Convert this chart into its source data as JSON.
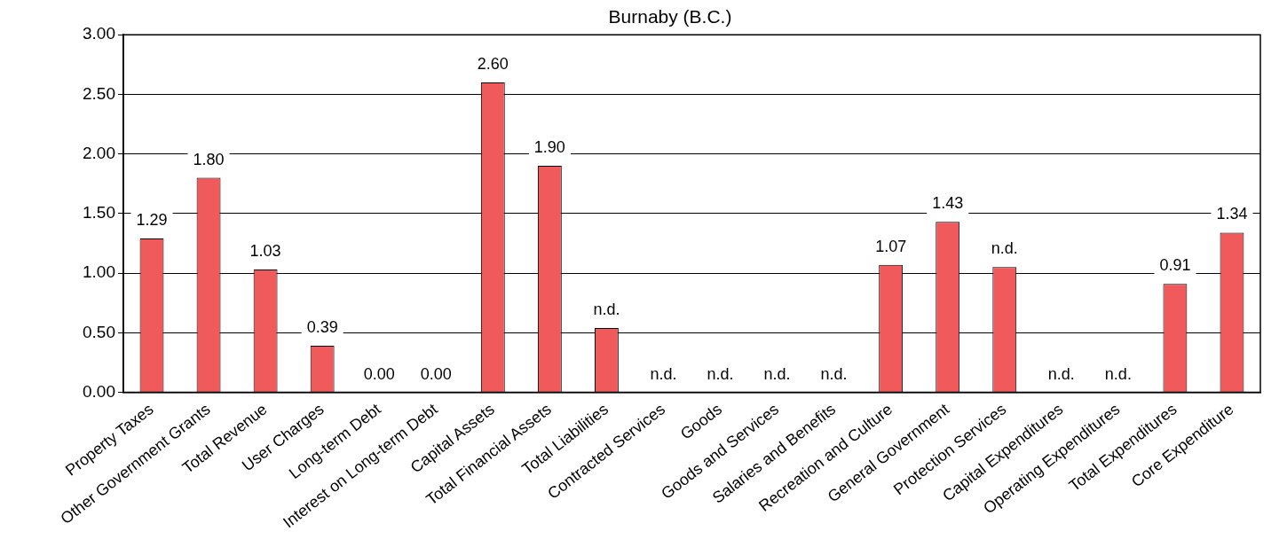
{
  "chart_data": {
    "type": "bar",
    "title": "Burnaby (B.C.)",
    "categories": [
      "Property Taxes",
      "Other Government Grants",
      "Total Revenue",
      "User Charges",
      "Long-term Debt",
      "Interest on Long-term Debt",
      "Capital Assets",
      "Total Financial Assets",
      "Total Liabilities",
      "Contracted Services",
      "Goods",
      "Goods and Services",
      "Salaries and Benefits",
      "Recreation and Culture",
      "General Government",
      "Protection Services",
      "Capital Expenditures",
      "Operating Expenditures",
      "Total Expenditures",
      "Core Expenditure"
    ],
    "values": [
      1.29,
      1.8,
      1.03,
      0.39,
      0,
      0,
      2.6,
      1.9,
      0.54,
      null,
      null,
      null,
      null,
      1.07,
      1.43,
      1.05,
      null,
      null,
      0.91,
      1.34
    ],
    "value_labels": [
      "1.29",
      "1.80",
      "1.03",
      "0.39",
      "0.00",
      "0.00",
      "2.60",
      "1.90",
      "n.d.",
      "n.d.",
      "n.d.",
      "n.d.",
      "n.d.",
      "1.07",
      "1.43",
      "n.d.",
      "n.d.",
      "n.d.",
      "0.91",
      "1.34"
    ],
    "color": "#f05a5a",
    "ylim": [
      0,
      3
    ],
    "yticks": [
      {
        "value": 0,
        "label": "0.00"
      },
      {
        "value": 0.5,
        "label": "0.50"
      },
      {
        "value": 1,
        "label": "1.00"
      },
      {
        "value": 1.5,
        "label": "1.50"
      },
      {
        "value": 2,
        "label": "2.00"
      },
      {
        "value": 2.5,
        "label": "2.50"
      },
      {
        "value": 3,
        "label": "3.00"
      }
    ],
    "grid": "y",
    "legend": false
  }
}
